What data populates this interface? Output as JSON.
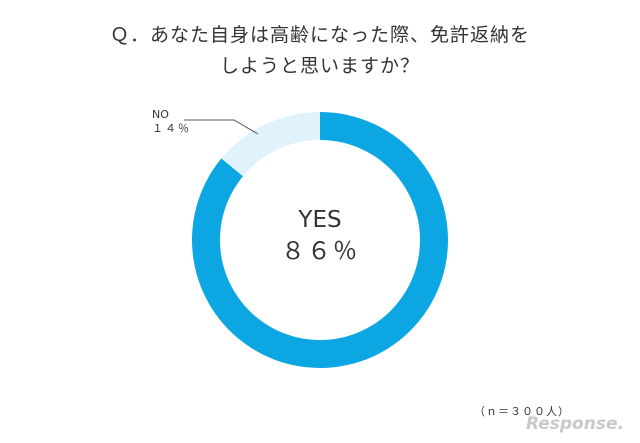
{
  "chart_data": {
    "type": "pie",
    "title_lines": [
      "Ｑ．あなた自身は高齢になった際、免許返納を",
      "しようと思いますか？"
    ],
    "slices": [
      {
        "name": "YES",
        "value": 86,
        "label": "86%",
        "color": "#0ca6e3"
      },
      {
        "name": "NO",
        "value": 14,
        "label": "14%",
        "color": "#e0f3fc"
      }
    ],
    "center": {
      "name": "YES",
      "value_label": "８６％"
    },
    "no_label": {
      "name": "NO",
      "value_label": "１４％"
    },
    "sample_note": "（ｎ＝３００人）"
  },
  "watermark": "Response."
}
